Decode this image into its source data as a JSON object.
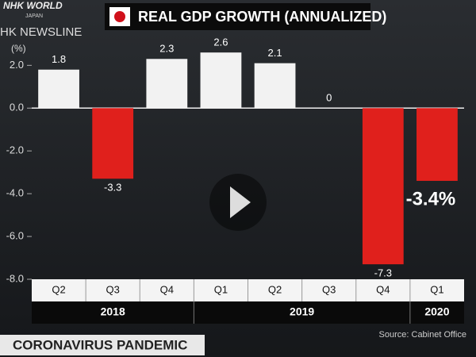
{
  "chart_data": {
    "type": "bar",
    "title": "REAL GDP GROWTH (ANNUALIZED)",
    "y_unit": "(%)",
    "categories": [
      "Q2",
      "Q3",
      "Q4",
      "Q1",
      "Q2",
      "Q3",
      "Q4",
      "Q1"
    ],
    "category_years": [
      "2018",
      null,
      null,
      "2019",
      null,
      null,
      null,
      "2020"
    ],
    "values": [
      1.8,
      -3.3,
      2.3,
      2.6,
      2.1,
      0,
      -7.3,
      -3.4
    ],
    "value_labels": [
      "1.8",
      "-3.3",
      "2.3",
      "2.6",
      "2.1",
      "0",
      "-7.3",
      "-3.4%"
    ],
    "positive_color": "#f2f2f2",
    "negative_color": "#e0201c",
    "ylim": [
      -8,
      3.2
    ],
    "yticks": [
      {
        "value": 2,
        "label": "2.0"
      },
      {
        "value": 0,
        "label": "0.0"
      },
      {
        "value": -2,
        "label": "-2.0"
      },
      {
        "value": -4,
        "label": "-4.0"
      },
      {
        "value": -6,
        "label": "-6.0"
      },
      {
        "value": -8,
        "label": "-8.0"
      }
    ],
    "source": "Source: Cabinet Office"
  },
  "broadcast": {
    "logo": "NHK WORLD",
    "logo_sub": "JAPAN",
    "program": "HK NEWSLINE",
    "banner": "CORONAVIRUS PANDEMIC"
  }
}
